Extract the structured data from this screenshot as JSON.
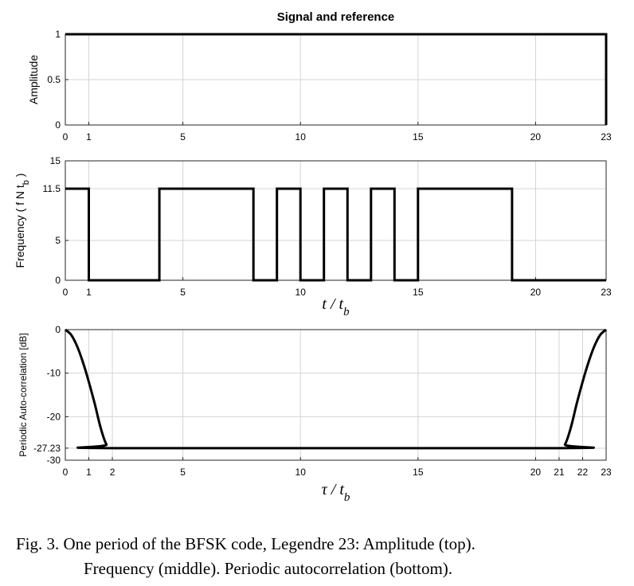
{
  "chart_data": [
    {
      "type": "line",
      "title": "Signal and reference",
      "ylabel": "Amplitude",
      "xlabel": "",
      "xlim": [
        0,
        23
      ],
      "ylim": [
        0,
        1
      ],
      "xticks": [
        "0",
        "1",
        "5",
        "10",
        "15",
        "20",
        "23"
      ],
      "xtick_values": [
        0,
        1,
        5,
        10,
        15,
        20,
        23
      ],
      "yticks": [
        "0",
        "0.5",
        "1"
      ],
      "ytick_values": [
        0,
        0.5,
        1
      ],
      "grid": true,
      "series": [
        {
          "x": [
            0,
            23,
            23
          ],
          "y": [
            1,
            1,
            0
          ]
        }
      ]
    },
    {
      "type": "line",
      "title": "",
      "ylabel": "Frequency ( f  N t",
      "ylabel_sub": "b",
      "ylabel_end": " )",
      "xlabel": "t / t",
      "xlabel_sub": "b",
      "xlim": [
        0,
        23
      ],
      "ylim": [
        0,
        15
      ],
      "xticks": [
        "0",
        "1",
        "5",
        "10",
        "15",
        "20",
        "23"
      ],
      "xtick_values": [
        0,
        1,
        5,
        10,
        15,
        20,
        23
      ],
      "yticks": [
        "0",
        "5",
        "11.5",
        "15"
      ],
      "ytick_values": [
        0,
        5,
        11.5,
        15
      ],
      "grid": true,
      "series": [
        {
          "x": [
            0,
            1,
            1,
            4,
            4,
            8,
            8,
            9,
            9,
            10,
            10,
            11,
            11,
            12,
            12,
            13,
            13,
            14,
            14,
            15,
            15,
            19,
            19,
            23
          ],
          "y": [
            11.5,
            11.5,
            0,
            0,
            11.5,
            11.5,
            0,
            0,
            11.5,
            11.5,
            0,
            0,
            11.5,
            11.5,
            0,
            0,
            11.5,
            11.5,
            0,
            0,
            11.5,
            11.5,
            0,
            0
          ]
        }
      ]
    },
    {
      "type": "line",
      "title": "",
      "ylabel": "Periodic Auto-correlation [dB]",
      "xlabel": "τ / t",
      "xlabel_sub": "b",
      "xlim": [
        0,
        23
      ],
      "ylim": [
        -30,
        0
      ],
      "xticks": [
        "0",
        "1",
        "2",
        "5",
        "10",
        "15",
        "20",
        "21",
        "22",
        "23"
      ],
      "xtick_values": [
        0,
        1,
        2,
        5,
        10,
        15,
        20,
        21,
        22,
        23
      ],
      "yticks": [
        "0",
        "-10",
        "-20",
        "-27.23",
        "-30"
      ],
      "ytick_values": [
        0,
        -10,
        -20,
        -27.23,
        -30
      ],
      "grid": true,
      "series": [
        {
          "x": [
            0,
            0.25,
            0.5,
            0.75,
            1,
            1.25,
            1.5,
            1.75,
            2,
            21,
            21.25,
            21.5,
            21.75,
            22,
            22.25,
            22.5,
            22.75,
            23
          ],
          "y": [
            0,
            -1.2,
            -3.8,
            -7.5,
            -12,
            -17,
            -22.5,
            -26.4,
            -27.23,
            -27.23,
            -26.4,
            -22.5,
            -17,
            -12,
            -7.5,
            -3.8,
            -1.2,
            0
          ]
        }
      ]
    }
  ],
  "caption": {
    "line1": "Fig. 3.    One period of the BFSK code, Legendre 23: Amplitude (top).",
    "line2": "Frequency (middle). Periodic autocorrelation (bottom)."
  }
}
